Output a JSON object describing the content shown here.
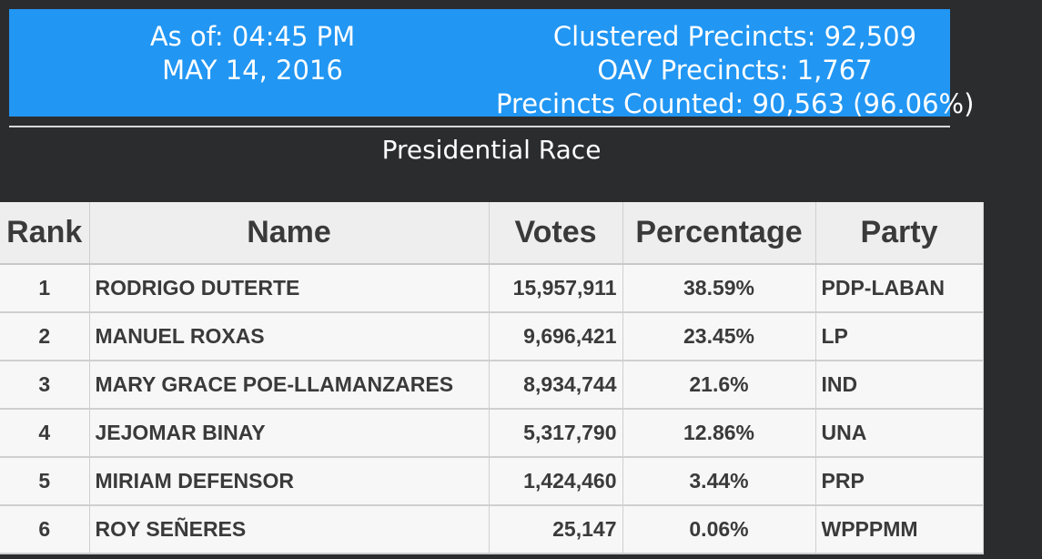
{
  "banner": {
    "as_of_time": "As of: 04:45 PM",
    "as_of_date": "MAY 14, 2016",
    "clustered_precincts": "Clustered Precincts: 92,509",
    "oav_precincts": "OAV Precincts: 1,767",
    "precincts_counted": "Precincts Counted: 90,563 (96.06%)"
  },
  "race_title": "Presidential Race",
  "table": {
    "headers": {
      "rank": "Rank",
      "name": "Name",
      "votes": "Votes",
      "percentage": "Percentage",
      "party": "Party"
    },
    "rows": [
      {
        "rank": "1",
        "name": "RODRIGO DUTERTE",
        "votes": "15,957,911",
        "percentage": "38.59%",
        "party": "PDP-LABAN"
      },
      {
        "rank": "2",
        "name": "MANUEL ROXAS",
        "votes": "9,696,421",
        "percentage": "23.45%",
        "party": "LP"
      },
      {
        "rank": "3",
        "name": "MARY GRACE POE-LLAMANZARES",
        "votes": "8,934,744",
        "percentage": "21.6%",
        "party": "IND"
      },
      {
        "rank": "4",
        "name": "JEJOMAR BINAY",
        "votes": "5,317,790",
        "percentage": "12.86%",
        "party": "UNA"
      },
      {
        "rank": "5",
        "name": "MIRIAM DEFENSOR",
        "votes": "1,424,460",
        "percentage": "3.44%",
        "party": "PRP"
      },
      {
        "rank": "6",
        "name": "ROY SEÑERES",
        "votes": "25,147",
        "percentage": "0.06%",
        "party": "WPPPMM"
      }
    ]
  },
  "colors": {
    "banner_background": "#2196f3",
    "page_background": "#2b2c2e",
    "table_header_background": "#eeeeee",
    "table_text": "#3a3a3a"
  }
}
